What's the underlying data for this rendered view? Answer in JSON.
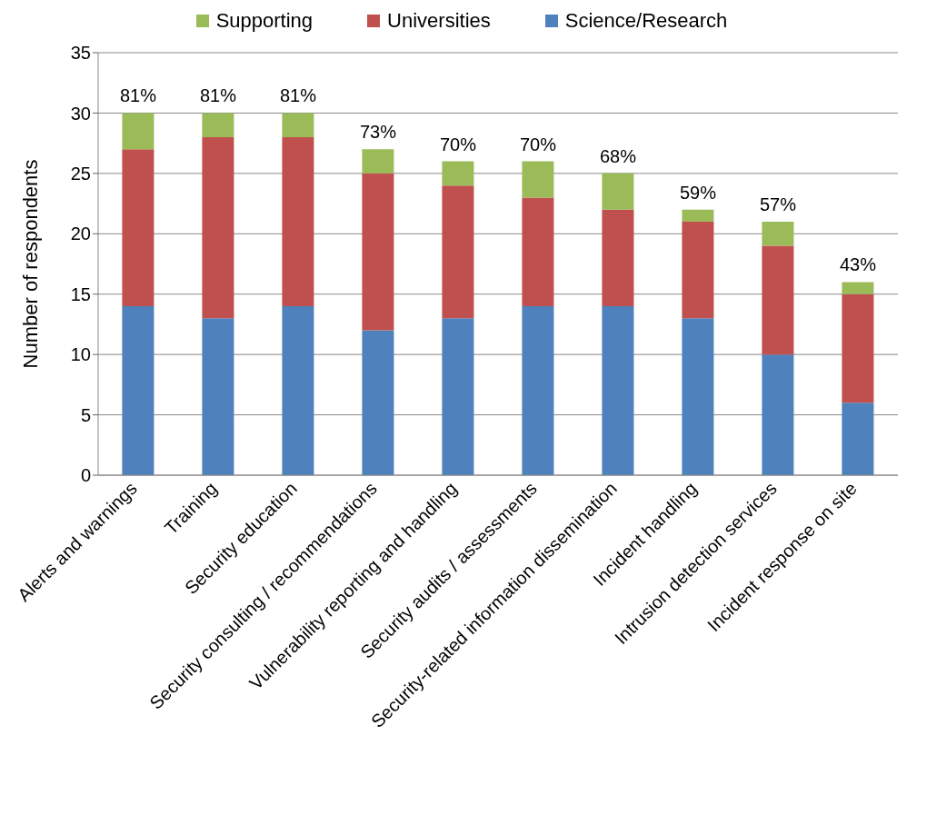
{
  "chart_data": {
    "type": "bar",
    "stacked": true,
    "ylabel": "Number of respondents",
    "categories": [
      "Alerts and warnings",
      "Training",
      "Security education",
      "Security consulting / recommendations",
      "Vulnerability reporting and handling",
      "Security audits / assessments",
      "Security-related information dissemination",
      "Incident handling",
      "Intrusion detection services",
      "Incident response on site"
    ],
    "series": [
      {
        "name": "Science/Research",
        "color": "#4f81bd",
        "values": [
          14,
          13,
          14,
          12,
          13,
          14,
          14,
          13,
          10,
          6
        ]
      },
      {
        "name": "Universities",
        "color": "#c0504d",
        "values": [
          13,
          15,
          14,
          13,
          11,
          9,
          8,
          8,
          9,
          9
        ]
      },
      {
        "name": "Supporting",
        "color": "#9bbb59",
        "values": [
          3,
          2,
          2,
          2,
          2,
          3,
          3,
          1,
          2,
          1
        ]
      }
    ],
    "annotations": [
      {
        "text": "81%",
        "x": "Alerts and warnings",
        "y": 30
      },
      {
        "text": "81%",
        "x": "Training",
        "y": 30
      },
      {
        "text": "81%",
        "x": "Security education",
        "y": 30
      },
      {
        "text": "73%",
        "x": "Security consulting / recommendations",
        "y": 27
      },
      {
        "text": "70%",
        "x": "Vulnerability reporting and handling",
        "y": 26
      },
      {
        "text": "70%",
        "x": "Security audits / assessments",
        "y": 26
      },
      {
        "text": "68%",
        "x": "Security-related information dissemination",
        "y": 25
      },
      {
        "text": "59%",
        "x": "Incident handling",
        "y": 22
      },
      {
        "text": "57%",
        "x": "Intrusion detection services",
        "y": 21
      },
      {
        "text": "43%",
        "x": "Incident response on site",
        "y": 16
      }
    ],
    "ylim": [
      0,
      35
    ],
    "yticks": [
      0,
      5,
      10,
      15,
      20,
      25,
      30,
      35
    ],
    "grid": "y",
    "legend": "top"
  }
}
